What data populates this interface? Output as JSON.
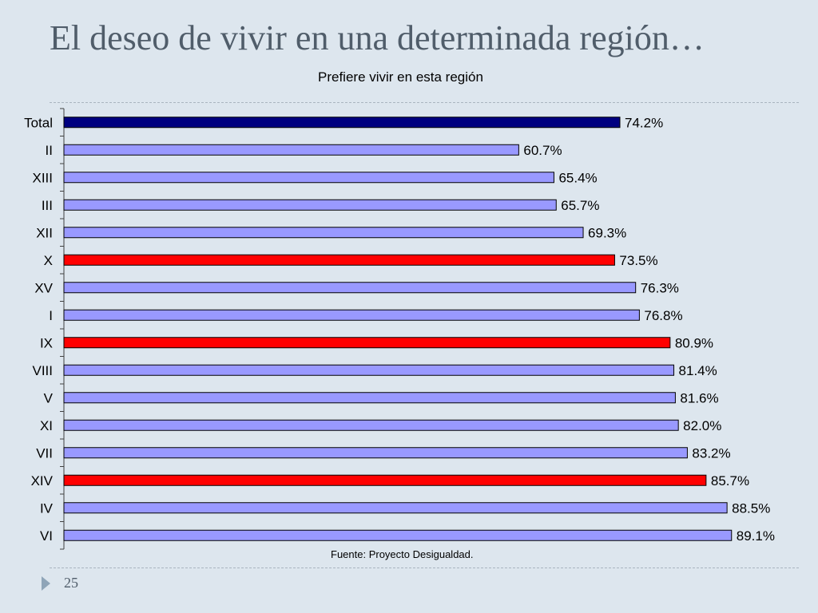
{
  "slide": {
    "title": "El deseo de vivir en una determinada región…",
    "number": "25"
  },
  "chart_data": {
    "type": "bar",
    "orientation": "horizontal",
    "title": "Prefiere vivir en esta región",
    "source": "Fuente: Proyecto Desigualdad.",
    "categories": [
      "Total",
      "II",
      "XIII",
      "III",
      "XII",
      "X",
      "XV",
      "I",
      "IX",
      "VIII",
      "V",
      "XI",
      "VII",
      "XIV",
      "IV",
      "VI"
    ],
    "values": [
      74.2,
      60.7,
      65.4,
      65.7,
      69.3,
      73.5,
      76.3,
      76.8,
      80.9,
      81.4,
      81.6,
      82.0,
      83.2,
      85.7,
      88.5,
      89.1
    ],
    "labels": [
      "74.2%",
      "60.7%",
      "65.4%",
      "65.7%",
      "69.3%",
      "73.5%",
      "76.3%",
      "76.8%",
      "80.9%",
      "81.4%",
      "81.6%",
      "82.0%",
      "83.2%",
      "85.7%",
      "88.5%",
      "89.1%"
    ],
    "bar_colors": [
      "#000080",
      "#9999ff",
      "#9999ff",
      "#9999ff",
      "#9999ff",
      "#ff0000",
      "#9999ff",
      "#9999ff",
      "#ff0000",
      "#9999ff",
      "#9999ff",
      "#9999ff",
      "#9999ff",
      "#ff0000",
      "#9999ff",
      "#9999ff"
    ],
    "xlim": [
      0,
      100
    ],
    "grid": false,
    "legend": "none"
  }
}
